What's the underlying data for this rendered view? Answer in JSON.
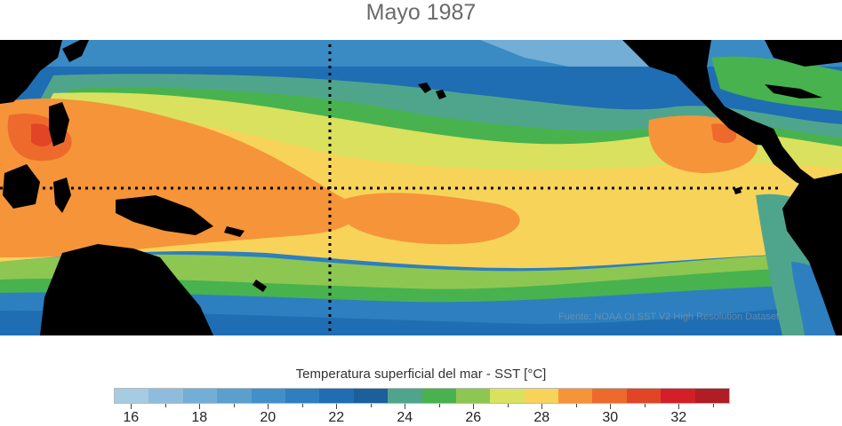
{
  "title": "Mayo 1987",
  "source_note": "Fuente: NOAA OI SST V2 High Resolution Dataset",
  "legend": {
    "title": "Temperatura superficial del mar - SST  [°C]",
    "ticks": [
      "16",
      "18",
      "20",
      "22",
      "24",
      "26",
      "28",
      "30",
      "32"
    ],
    "colors": [
      "#a6cbe2",
      "#8fbcdc",
      "#73aed6",
      "#5b9fcf",
      "#4290c9",
      "#2d7fbf",
      "#1f6eb3",
      "#1b5f9b",
      "#4fa58c",
      "#48b24f",
      "#8ec652",
      "#d9e15e",
      "#f7d35a",
      "#f69439",
      "#ee6a2c",
      "#e24426",
      "#d21f28",
      "#b01d25"
    ]
  },
  "colors": {
    "land": "#000000",
    "reference_lines": "#000000"
  }
}
